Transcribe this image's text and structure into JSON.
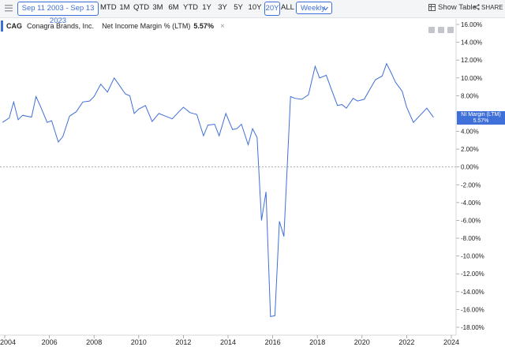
{
  "toolbar": {
    "date_range": "Sep 11 2003 - Sep 13 2023",
    "ranges": [
      {
        "label": "MTD",
        "active": false
      },
      {
        "label": "1M",
        "active": false
      },
      {
        "label": "QTD",
        "active": false
      },
      {
        "label": "3M",
        "active": false
      },
      {
        "label": "6M",
        "active": false
      },
      {
        "label": "YTD",
        "active": false
      },
      {
        "label": "1Y",
        "active": false
      },
      {
        "label": "3Y",
        "active": false
      },
      {
        "label": "5Y",
        "active": false
      },
      {
        "label": "10Y",
        "active": false
      },
      {
        "label": "20Y",
        "active": true
      },
      {
        "label": "ALL",
        "active": false
      }
    ],
    "frequency": "Weekly",
    "show_table": "Show Table",
    "share": "SHARE"
  },
  "legend": {
    "ticker": "CAG",
    "company": "Conagra Brands, Inc.",
    "series": "Net Income Margin % (LTM)",
    "value": "5.57%"
  },
  "last_tag": {
    "label": "NI Margin (LTM)",
    "value": "5.57%"
  },
  "colors": {
    "line": "#3f6fd8",
    "accent": "#3f6fd8"
  },
  "chart_data": {
    "type": "line",
    "title": "",
    "xlabel": "",
    "ylabel": "",
    "ylim": [
      -18,
      16
    ],
    "xlim": [
      2004,
      2024
    ],
    "yticks": [
      "16.00%",
      "14.00%",
      "12.00%",
      "10.00%",
      "8.00%",
      "6.00%",
      "4.00%",
      "2.00%",
      "0.00%",
      "-2.00%",
      "-4.00%",
      "-6.00%",
      "-8.00%",
      "-10.00%",
      "-12.00%",
      "-14.00%",
      "-16.00%",
      "-18.00%"
    ],
    "xticks": [
      "2004",
      "2006",
      "2008",
      "2010",
      "2012",
      "2014",
      "2016",
      "2018",
      "2020",
      "2022",
      "2024"
    ],
    "series": [
      {
        "name": "NI Margin (LTM)",
        "x": [
          2003.9,
          2004.2,
          2004.4,
          2004.6,
          2004.8,
          2005.2,
          2005.4,
          2005.6,
          2005.9,
          2006.1,
          2006.4,
          2006.6,
          2006.9,
          2007.2,
          2007.5,
          2007.8,
          2008.0,
          2008.3,
          2008.6,
          2008.9,
          2009.1,
          2009.4,
          2009.6,
          2009.8,
          2010.0,
          2010.3,
          2010.6,
          2010.9,
          2011.2,
          2011.5,
          2011.8,
          2012.0,
          2012.3,
          2012.6,
          2012.9,
          2013.1,
          2013.4,
          2013.6,
          2013.9,
          2014.2,
          2014.4,
          2014.6,
          2014.9,
          2015.1,
          2015.3,
          2015.5,
          2015.7,
          2015.9,
          2016.1,
          2016.3,
          2016.5,
          2016.8,
          2017.0,
          2017.3,
          2017.6,
          2017.9,
          2018.1,
          2018.4,
          2018.6,
          2018.9,
          2019.1,
          2019.3,
          2019.6,
          2019.8,
          2020.1,
          2020.3,
          2020.6,
          2020.9,
          2021.1,
          2021.3,
          2021.5,
          2021.8,
          2022.0,
          2022.3,
          2022.6,
          2022.9,
          2023.2
        ],
        "y": [
          5.0,
          5.5,
          7.3,
          5.3,
          5.8,
          5.6,
          7.9,
          6.8,
          5.0,
          5.2,
          2.8,
          3.4,
          5.7,
          6.2,
          7.3,
          7.4,
          7.9,
          9.3,
          8.4,
          10.0,
          9.3,
          8.2,
          8.0,
          6.0,
          6.5,
          6.9,
          5.1,
          6.0,
          5.7,
          5.4,
          6.2,
          6.7,
          6.1,
          5.9,
          3.5,
          4.7,
          4.8,
          3.5,
          6.0,
          4.2,
          4.3,
          4.8,
          2.5,
          4.3,
          3.3,
          -6.0,
          -2.8,
          -16.8,
          -16.7,
          -6.1,
          -7.8,
          7.9,
          7.7,
          7.6,
          8.1,
          11.3,
          10.0,
          10.3,
          8.9,
          6.9,
          7.0,
          6.6,
          7.7,
          7.4,
          7.6,
          8.5,
          9.8,
          10.2,
          11.6,
          10.6,
          9.5,
          8.5,
          6.7,
          5.0,
          5.8,
          6.6,
          5.57
        ]
      }
    ]
  }
}
